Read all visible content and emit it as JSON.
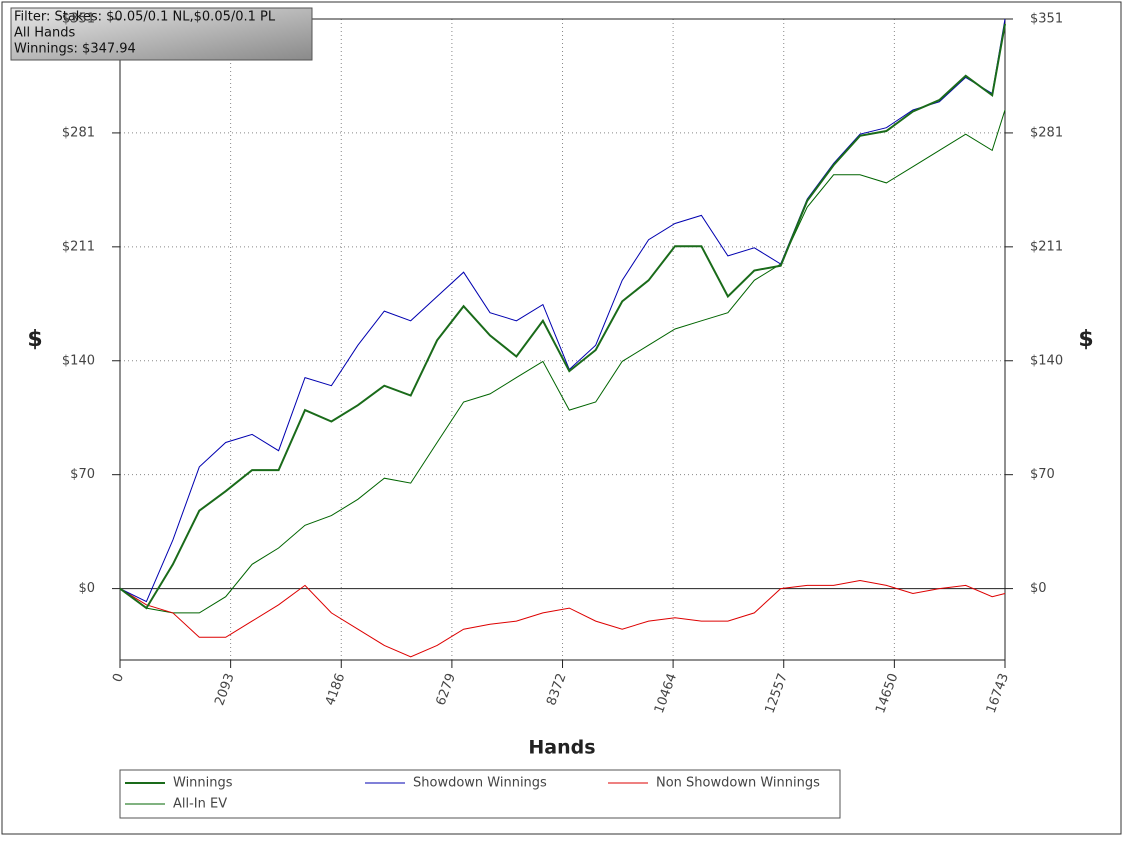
{
  "chart_data": {
    "type": "line",
    "filter_lines": [
      "Filter: Stakes: $0.05/0.1 NL,$0.05/0.1 PL",
      "All Hands",
      "Winnings: $347.94"
    ],
    "xlabel": "Hands",
    "ylabel": "$",
    "x": [
      0,
      500,
      1000,
      1500,
      2000,
      2500,
      3000,
      3500,
      4000,
      4500,
      5000,
      5500,
      6000,
      6500,
      7000,
      7500,
      8000,
      8500,
      9000,
      9500,
      10000,
      10500,
      11000,
      11500,
      12000,
      12500,
      13000,
      13500,
      14000,
      14500,
      15000,
      15500,
      16000,
      16500,
      16743
    ],
    "series": [
      {
        "name": "Winnings",
        "color": "#1a6b1a",
        "line_width": 2,
        "values": [
          0,
          -12,
          15,
          48,
          60,
          73,
          73,
          110,
          103,
          113,
          125,
          119,
          153,
          174,
          156,
          143,
          165,
          134,
          147,
          177,
          190,
          211,
          211,
          180,
          196,
          199,
          239,
          261,
          279,
          282,
          294,
          301,
          316,
          304,
          347.94
        ]
      },
      {
        "name": "Showdown Winnings",
        "color": "#0000b0",
        "line_width": 1,
        "values": [
          0,
          -8,
          30,
          75,
          90,
          95,
          85,
          130,
          125,
          150,
          171,
          165,
          180,
          195,
          170,
          165,
          175,
          135,
          150,
          190,
          215,
          225,
          230,
          205,
          210,
          200,
          240,
          262,
          280,
          284,
          295,
          300,
          315,
          305,
          351
        ]
      },
      {
        "name": "Non Showdown Winnings",
        "color": "#dd0000",
        "line_width": 1,
        "values": [
          0,
          -10,
          -15,
          -30,
          -30,
          -20,
          -10,
          2,
          -15,
          -25,
          -35,
          -42,
          -35,
          -25,
          -22,
          -20,
          -15,
          -12,
          -20,
          -25,
          -20,
          -18,
          -20,
          -20,
          -15,
          0,
          2,
          2,
          5,
          2,
          -3,
          0,
          2,
          -5,
          -3
        ]
      },
      {
        "name": "All-In EV",
        "color": "#006400",
        "line_width": 1,
        "values": [
          0,
          -12,
          -15,
          -15,
          -5,
          15,
          25,
          39,
          45,
          55,
          68,
          65,
          90,
          115,
          120,
          130,
          140,
          110,
          115,
          140,
          150,
          160,
          165,
          170,
          190,
          200,
          235,
          255,
          255,
          250,
          260,
          270,
          280,
          270,
          295
        ]
      }
    ],
    "xlim": [
      0,
      16743
    ],
    "xticks": [
      0,
      2093,
      4186,
      6279,
      8372,
      10464,
      12557,
      14650,
      16743
    ],
    "ylim": [
      -44,
      351
    ],
    "yticks": [
      {
        "value": 0,
        "label": "$0"
      },
      {
        "value": 70.2,
        "label": "$70"
      },
      {
        "value": 140.4,
        "label": "$140"
      },
      {
        "value": 210.6,
        "label": "$211"
      },
      {
        "value": 280.8,
        "label": "$281"
      },
      {
        "value": 351,
        "label": "$351"
      }
    ],
    "grid": true
  }
}
